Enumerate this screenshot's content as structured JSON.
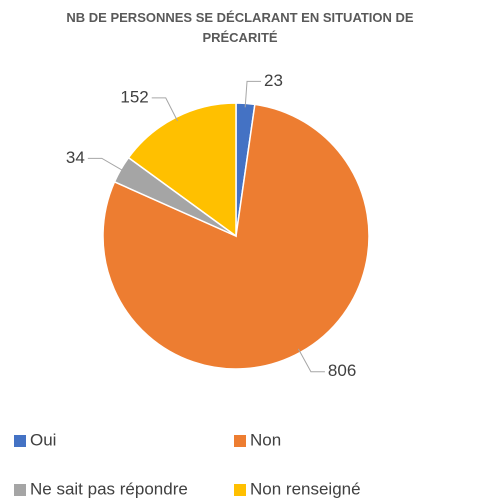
{
  "chart_data": {
    "type": "pie",
    "title": "NB DE PERSONNES SE DÉCLARANT EN SITUATION DE PRÉCARITÉ",
    "categories": [
      "Oui",
      "Non",
      "Ne sait pas répondre",
      "Non renseigné"
    ],
    "values": [
      23,
      806,
      34,
      152
    ],
    "colors": [
      "#4472c4",
      "#ed7d31",
      "#a5a5a5",
      "#ffc000"
    ]
  }
}
